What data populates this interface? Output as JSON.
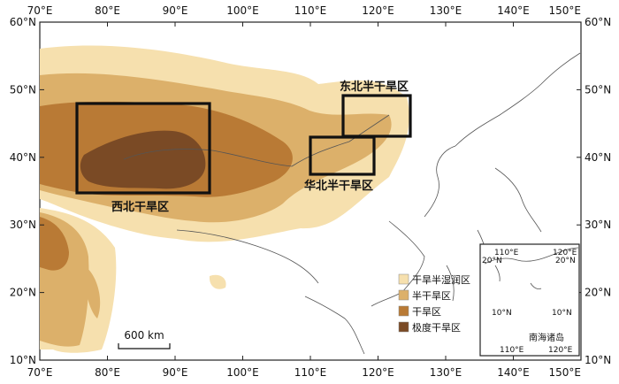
{
  "axes": {
    "lon_ticks": [
      "70°E",
      "80°E",
      "90°E",
      "100°E",
      "110°E",
      "120°E",
      "130°E",
      "140°E",
      "150°E"
    ],
    "lat_ticks": [
      "60°N",
      "50°N",
      "40°N",
      "30°N",
      "20°N",
      "10°N"
    ]
  },
  "regions": [
    {
      "name": "西北干旱区",
      "lon": [
        75.5,
        95.5
      ],
      "lat": [
        34.5,
        48
      ]
    },
    {
      "name": "华北半干旱区",
      "lon": [
        110,
        119.5
      ],
      "lat": [
        37.5,
        43
      ]
    },
    {
      "name": "东北半干旱区",
      "lon": [
        115,
        125
      ],
      "lat": [
        43,
        49
      ]
    }
  ],
  "legend": [
    {
      "label": "干旱半湿润区",
      "color": "#f6e0ae"
    },
    {
      "label": "半干旱区",
      "color": "#dcb06a"
    },
    {
      "label": "干旱区",
      "color": "#b97a35"
    },
    {
      "label": "极度干旱区",
      "color": "#7a4a25"
    }
  ],
  "scale_bar": {
    "label": "600 km"
  },
  "inset": {
    "title": "南海诸岛",
    "ticks": {
      "top_left": "110°E",
      "top_right": "120°E",
      "left_upper": "20°N",
      "right_upper": "20°N",
      "left_lower": "10°N",
      "right_lower": "10°N",
      "bottom_left": "110°E",
      "bottom_right": "120°E"
    }
  }
}
